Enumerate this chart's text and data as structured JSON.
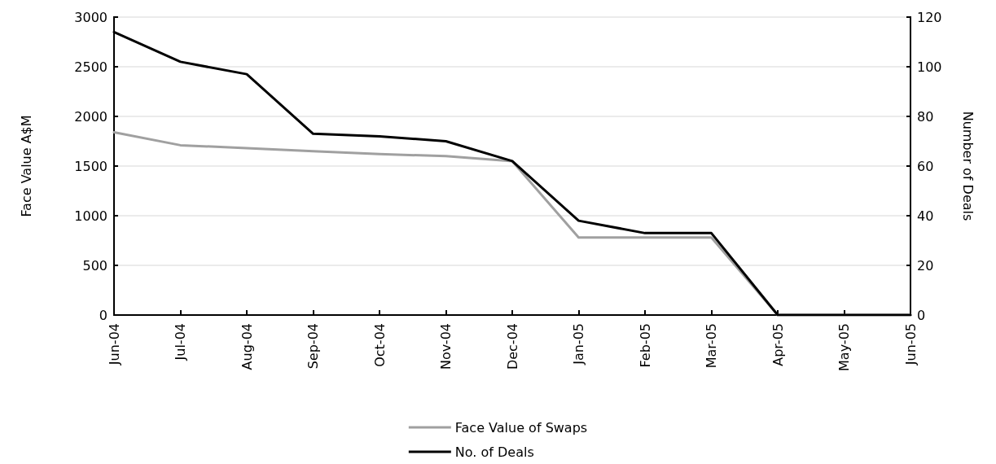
{
  "chart_data": {
    "type": "line",
    "categories": [
      "Jun-04",
      "Jul-04",
      "Aug-04",
      "Sep-04",
      "Oct-04",
      "Nov-04",
      "Dec-04",
      "Jan-05",
      "Feb-05",
      "Mar-05",
      "Apr-05",
      "May-05",
      "Jun-05"
    ],
    "series": [
      {
        "name": "Face Value of Swaps",
        "color": "#a0a0a0",
        "values": [
          1840,
          1710,
          1680,
          1650,
          1620,
          1600,
          1550,
          780,
          780,
          780,
          0,
          0,
          0
        ]
      },
      {
        "name": "No. of Deals",
        "color": "#000000",
        "axis": "y2",
        "values": [
          114,
          102,
          97,
          73,
          72,
          70,
          62,
          38,
          33,
          33,
          0,
          0,
          0
        ]
      }
    ],
    "ylabel": "Face Value A$M",
    "y2label": "Number of Deals",
    "ylim": [
      0,
      3000
    ],
    "yticks": [
      0,
      500,
      1000,
      1500,
      2000,
      2500,
      3000
    ],
    "y2lim": [
      0,
      120
    ],
    "y2ticks": [
      0,
      20,
      40,
      60,
      80,
      100,
      120
    ],
    "grid": "y",
    "legend": "bottom",
    "marker": "none",
    "line_style": "solid"
  }
}
